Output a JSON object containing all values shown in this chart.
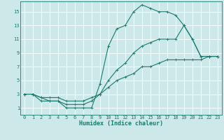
{
  "xlabel": "Humidex (Indice chaleur)",
  "bg_color": "#cce8e8",
  "grid_color": "#ffffff",
  "line_color": "#1a7a6e",
  "xlim": [
    -0.5,
    23.5
  ],
  "ylim": [
    0,
    16.5
  ],
  "xticks": [
    0,
    1,
    2,
    3,
    4,
    5,
    6,
    7,
    8,
    9,
    10,
    11,
    12,
    13,
    14,
    15,
    16,
    17,
    18,
    19,
    20,
    21,
    22,
    23
  ],
  "yticks": [
    1,
    3,
    5,
    7,
    9,
    11,
    13,
    15
  ],
  "line1_x": [
    0,
    1,
    2,
    3,
    4,
    5,
    6,
    7,
    8,
    9,
    10,
    11,
    12,
    13,
    14,
    15,
    16,
    17,
    18,
    19,
    20,
    21,
    22,
    23
  ],
  "line1_y": [
    3,
    3,
    2.5,
    2,
    2,
    1,
    1,
    1,
    1,
    4.5,
    10,
    12.5,
    13,
    15,
    16,
    15.5,
    15,
    15,
    14.5,
    13,
    11,
    8.5,
    8.5,
    8.5
  ],
  "line2_x": [
    0,
    1,
    2,
    3,
    4,
    5,
    6,
    7,
    8,
    9,
    10,
    11,
    12,
    13,
    14,
    15,
    16,
    17,
    18,
    19,
    20,
    21,
    22,
    23
  ],
  "line2_y": [
    3,
    3,
    2,
    2,
    2,
    1.5,
    1.5,
    1.5,
    2,
    3,
    5,
    6.5,
    7.5,
    9,
    10,
    10.5,
    11,
    11,
    11,
    13,
    11,
    8.5,
    8.5,
    8.5
  ],
  "line3_x": [
    0,
    1,
    2,
    3,
    4,
    5,
    6,
    7,
    8,
    9,
    10,
    11,
    12,
    13,
    14,
    15,
    16,
    17,
    18,
    19,
    20,
    21,
    22,
    23
  ],
  "line3_y": [
    3,
    3,
    2.5,
    2.5,
    2.5,
    2,
    2,
    2,
    2.5,
    3,
    4,
    5,
    5.5,
    6,
    7,
    7,
    7.5,
    8,
    8,
    8,
    8,
    8,
    8.5,
    8.5
  ],
  "tick_fontsize": 5.0,
  "xlabel_fontsize": 6.0,
  "marker_size": 2.0,
  "line_width": 0.8
}
